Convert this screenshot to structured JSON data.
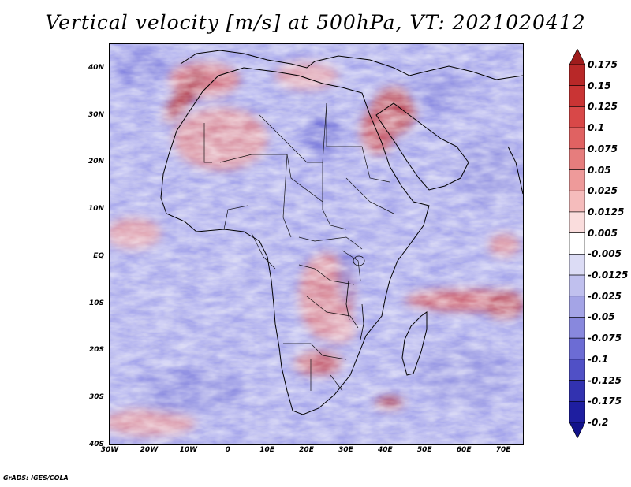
{
  "title": "Vertical velocity [m/s] at 500hPa, VT: 2021020412",
  "footer": "GrADS: IGES/COLA",
  "y_axis": {
    "unit": "degrees latitude",
    "range": [
      -40,
      45
    ],
    "ticks": [
      {
        "value": 40,
        "label": "40N"
      },
      {
        "value": 30,
        "label": "30N"
      },
      {
        "value": 20,
        "label": "20N"
      },
      {
        "value": 10,
        "label": "10N"
      },
      {
        "value": 0,
        "label": "EQ"
      },
      {
        "value": -10,
        "label": "10S"
      },
      {
        "value": -20,
        "label": "20S"
      },
      {
        "value": -30,
        "label": "30S"
      },
      {
        "value": -40,
        "label": "40S"
      }
    ]
  },
  "x_axis": {
    "unit": "degrees longitude",
    "range": [
      -30,
      75
    ],
    "ticks": [
      {
        "value": -30,
        "label": "30W"
      },
      {
        "value": -20,
        "label": "20W"
      },
      {
        "value": -10,
        "label": "10W"
      },
      {
        "value": 0,
        "label": "0"
      },
      {
        "value": 10,
        "label": "10E"
      },
      {
        "value": 20,
        "label": "20E"
      },
      {
        "value": 30,
        "label": "30E"
      },
      {
        "value": 40,
        "label": "40E"
      },
      {
        "value": 50,
        "label": "50E"
      },
      {
        "value": 60,
        "label": "60E"
      },
      {
        "value": 70,
        "label": "70E"
      }
    ]
  },
  "colorbar": {
    "levels": [
      "0.175",
      "0.15",
      "0.125",
      "0.1",
      "0.075",
      "0.05",
      "0.025",
      "0.0125",
      "0.005",
      "-0.005",
      "-0.0125",
      "-0.025",
      "-0.05",
      "-0.075",
      "-0.1",
      "-0.125",
      "-0.175",
      "-0.2"
    ],
    "colors": [
      "#9e1c1c",
      "#b82828",
      "#c93434",
      "#d84848",
      "#e06262",
      "#e67d7d",
      "#ee9a9a",
      "#f5bcbc",
      "#fadddd",
      "#ffffff",
      "#dcdcf5",
      "#c0c0ee",
      "#a4a4e6",
      "#8888dd",
      "#6c6cd4",
      "#5050c6",
      "#3232b0",
      "#1e1ea0",
      "#12128a"
    ]
  },
  "colors": {
    "land_outline": "#000000",
    "positive_accent": "#c93434",
    "negative_accent": "#6060d0",
    "background_blue": "#b8b8ec"
  }
}
